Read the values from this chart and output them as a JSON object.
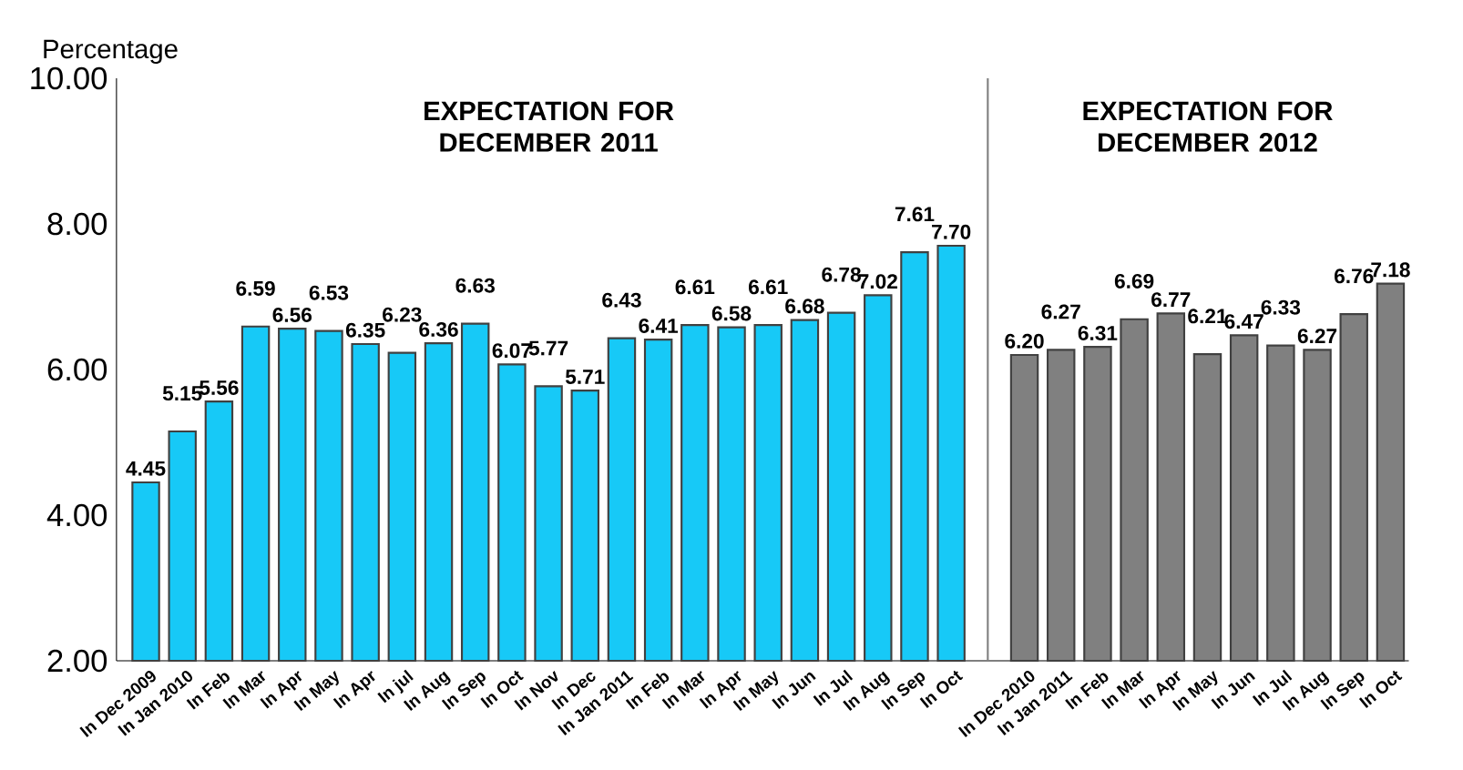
{
  "chart_data": {
    "type": "bar",
    "ylabel": "Percentage",
    "annotations": [
      "EXPECTATION FOR DECEMBER 2011",
      "EXPECTATION FOR DECEMBER 2012"
    ],
    "categories": [
      "In Dec 2009",
      "In Jan 2010",
      "In Feb",
      "In Mar",
      "In Apr",
      "In May",
      "In Apr",
      "In jul",
      "In Aug",
      "In Sep",
      "In Oct",
      "In Nov",
      "In Dec",
      "In Jan 2011",
      "In Feb",
      "In Mar",
      "In Apr",
      "In May",
      "In Jun",
      "In Jul",
      "In Aug",
      "In Sep",
      "In Oct",
      null,
      "In Dec 2010",
      "In Jan 2011",
      "In Feb",
      "In Mar",
      "In Apr",
      "In May",
      "In Jun",
      "In Jul",
      "In Aug",
      "In Sep",
      "In Oct"
    ],
    "series": [
      {
        "color": "#17c9f7",
        "values": [
          4.45,
          5.15,
          5.56,
          6.59,
          6.56,
          6.53,
          6.35,
          6.23,
          6.36,
          6.63,
          6.07,
          5.77,
          5.71,
          6.43,
          6.41,
          6.61,
          6.58,
          6.61,
          6.68,
          6.78,
          7.02,
          7.61,
          7.7,
          null,
          null,
          null,
          null,
          null,
          null,
          null,
          null,
          null,
          null,
          null,
          null
        ],
        "value_labels": [
          "4.45",
          "5.15",
          "5.56",
          "6.59",
          "6.56",
          "6.53",
          "6.35",
          "6.23",
          "6.36",
          "6.63",
          "6.07",
          "5.77",
          "5.71",
          "6.43",
          "6.41",
          "6.61",
          "6.58",
          "6.61",
          "6.68",
          "6.78",
          "7.02",
          "7.61",
          "7.70",
          null,
          null,
          null,
          null,
          null,
          null,
          null,
          null,
          null,
          null,
          null,
          null
        ]
      },
      {
        "color": "#808080",
        "values": [
          null,
          null,
          null,
          null,
          null,
          null,
          null,
          null,
          null,
          null,
          null,
          null,
          null,
          null,
          null,
          null,
          null,
          null,
          null,
          null,
          null,
          null,
          null,
          null,
          6.2,
          6.27,
          6.31,
          6.69,
          6.77,
          6.21,
          6.47,
          6.33,
          6.27,
          6.76,
          7.18
        ],
        "value_labels": [
          null,
          null,
          null,
          null,
          null,
          null,
          null,
          null,
          null,
          null,
          null,
          null,
          null,
          null,
          null,
          null,
          null,
          null,
          null,
          null,
          null,
          null,
          null,
          null,
          "6.20",
          "6.27",
          "6.31",
          "6.69",
          "6.77",
          "6.21",
          "6.47",
          "6.33",
          "6.27",
          "6.76",
          "7.18"
        ]
      }
    ],
    "ylim": [
      2,
      10
    ],
    "yticks": [
      {
        "value": 2,
        "label": "2.00"
      },
      {
        "value": 4,
        "label": "4.00"
      },
      {
        "value": 6,
        "label": "6.00"
      },
      {
        "value": 8,
        "label": "8.00"
      },
      {
        "value": 10,
        "label": "10.00"
      }
    ]
  }
}
